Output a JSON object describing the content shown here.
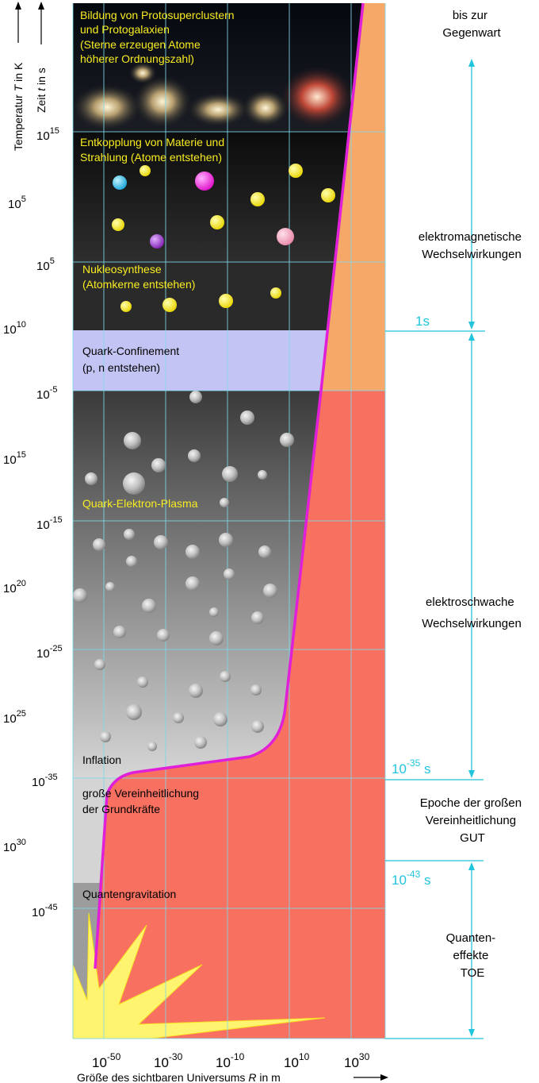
{
  "axis_titles": {
    "temperature_prefix": "Temperatur ",
    "temperature_var": "T",
    "temperature_unit": " in K",
    "time_prefix": "Zeit ",
    "time_var": "t",
    "time_unit": " in s",
    "size_prefix": "Größe des sichtbaren Universums ",
    "size_var": "R",
    "size_unit": " in m"
  },
  "x_ticks": [
    {
      "base": "10",
      "exp": "-50"
    },
    {
      "base": "10",
      "exp": "-30"
    },
    {
      "base": "10",
      "exp": "-10"
    },
    {
      "base": "10",
      "exp": "10"
    },
    {
      "base": "10",
      "exp": "30"
    }
  ],
  "time_ticks": [
    {
      "base": "10",
      "exp": "15"
    },
    {
      "base": "10",
      "exp": "5"
    },
    {
      "base": "10",
      "exp": "-5"
    },
    {
      "base": "10",
      "exp": "-15"
    },
    {
      "base": "10",
      "exp": "-25"
    },
    {
      "base": "10",
      "exp": "-35"
    },
    {
      "base": "10",
      "exp": "-45"
    }
  ],
  "temperature_ticks": [
    {
      "base": "10",
      "exp": "5"
    },
    {
      "base": "10",
      "exp": "10"
    },
    {
      "base": "10",
      "exp": "15"
    },
    {
      "base": "10",
      "exp": "20"
    },
    {
      "base": "10",
      "exp": "25"
    },
    {
      "base": "10",
      "exp": "30"
    }
  ],
  "epochs": {
    "protoclusters": [
      "Bildung von Protosuperclustern",
      "und Protogalaxien",
      "(Sterne erzeugen Atome",
      "höherer Ordnungszahl)"
    ],
    "decoupling": [
      "Entkopplung von Materie und",
      "Strahlung (Atome entstehen)"
    ],
    "nucleosynthesis": [
      "Nukleosynthese",
      "(Atomkerne entstehen)"
    ],
    "confinement": [
      "Quark-Confinement",
      "(p, n entstehen)"
    ],
    "plasma": "Quark-Elektron-Plasma",
    "inflation": "Inflation",
    "unification": [
      "große Vereinheitlichung",
      "der Grundkräfte"
    ],
    "quantum_gravity": "Quantengravitation"
  },
  "interactions": {
    "present": [
      "bis zur",
      "Gegenwart"
    ],
    "electromagnetic": [
      "elektromagnetische",
      "Wechselwirkungen"
    ],
    "electroweak": [
      "elektroschwache",
      "Wechselwirkungen"
    ],
    "gut": [
      "Epoche der großen",
      "Vereinheitlichung",
      "GUT"
    ],
    "toe": [
      "Quanten-",
      "effekte",
      "TOE"
    ]
  },
  "time_markers": {
    "one_second": "1s",
    "t35": {
      "base": "10",
      "exp": "-35",
      "unit": " s"
    },
    "t43": {
      "base": "10",
      "exp": "-43",
      "unit": " s"
    }
  },
  "colors": {
    "curve": "#e020d8",
    "right_region": "#f87060",
    "orange_region": "#f6a868",
    "epoch_text_yellow": "#f8ec20",
    "confinement_band": "#c4c4f4",
    "arrow_cyan": "#22c4dc"
  }
}
